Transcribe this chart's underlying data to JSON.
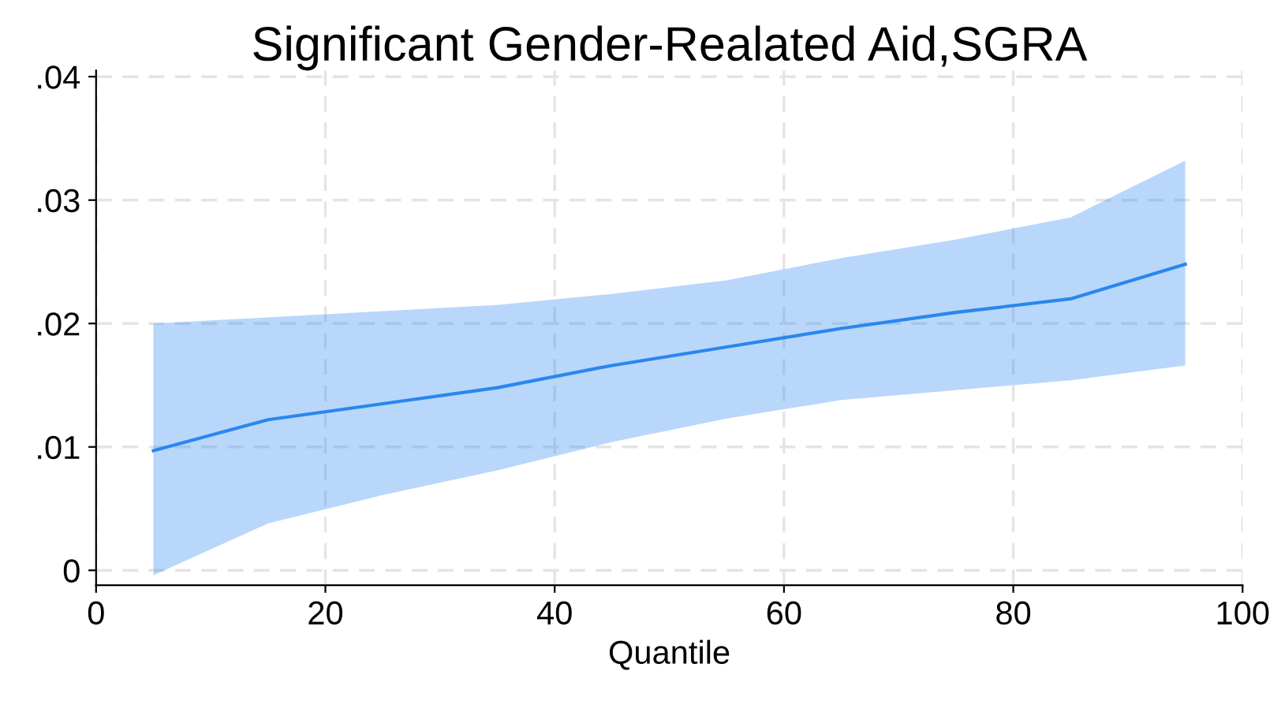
{
  "chart_data": {
    "type": "line",
    "title": "Significant Gender-Realated Aid,SGRA",
    "xlabel": "Quantile",
    "x": [
      5,
      15,
      25,
      35,
      45,
      55,
      65,
      75,
      85,
      95
    ],
    "series": [
      {
        "color": "#2a86f0",
        "values": [
          0.0097,
          0.0122,
          0.0135,
          0.0148,
          0.0166,
          0.0181,
          0.0196,
          0.0209,
          0.022,
          0.0248
        ],
        "lower": [
          -0.0004,
          0.0038,
          0.0061,
          0.0081,
          0.0104,
          0.0123,
          0.0138,
          0.0146,
          0.0154,
          0.0166
        ],
        "upper": [
          0.02,
          0.0205,
          0.021,
          0.0215,
          0.0224,
          0.0235,
          0.0253,
          0.0268,
          0.0286,
          0.0332
        ]
      }
    ],
    "xlim": [
      0,
      100
    ],
    "xticks": [
      0,
      20,
      40,
      60,
      80,
      100
    ],
    "ylim": [
      -0.0012,
      0.0405
    ],
    "yticks": [
      0,
      {
        "value": 0.01,
        "label": ".01"
      },
      {
        "value": 0.02,
        "label": ".02"
      },
      {
        "value": 0.03,
        "label": ".03"
      },
      {
        "value": 0.04,
        "label": ".04"
      }
    ],
    "grid": true,
    "line_style": "solid",
    "marker": "none"
  }
}
